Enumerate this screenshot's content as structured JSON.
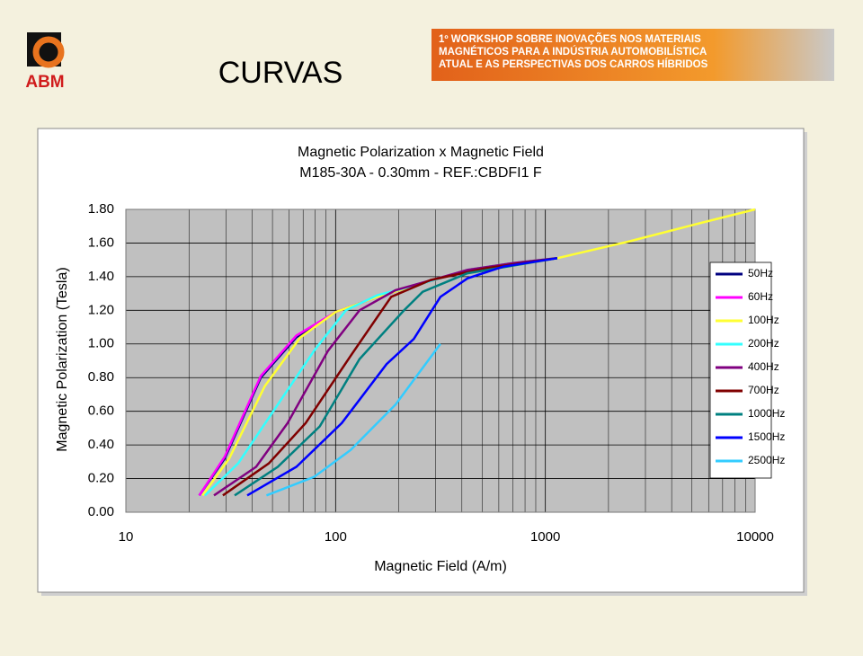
{
  "header": {
    "logo": "ABM",
    "title": "CURVAS",
    "banner": [
      "1º WORKSHOP SOBRE INOVAÇÕES NOS MATERIAIS",
      "MAGNÉTICOS PARA A INDÚSTRIA AUTOMOBILÍSTICA",
      "ATUAL E AS PERSPECTIVAS DOS CARROS HÍBRIDOS"
    ]
  },
  "chart_data": {
    "type": "line",
    "title": [
      "Magnetic Polarization x Magnetic Field",
      "M185-30A - 0.30mm - REF.:CBDFI1 F"
    ],
    "x_label": "Magnetic Field (A/m)",
    "y_label": "Magnetic Polarization (Tesla)",
    "xscale": "log",
    "xlim": [
      10,
      10000
    ],
    "xticks": [
      10,
      100,
      1000,
      10000
    ],
    "ylim": [
      0,
      1.8
    ],
    "yticks": [
      {
        "value": 0,
        "label": "0.00"
      },
      {
        "value": 0.2,
        "label": "0.20"
      },
      {
        "value": 0.4,
        "label": "0.40"
      },
      {
        "value": 0.6,
        "label": "0.60"
      },
      {
        "value": 0.8,
        "label": "0.80"
      },
      {
        "value": 1.0,
        "label": "1.00"
      },
      {
        "value": 1.2,
        "label": "1.20"
      },
      {
        "value": 1.4,
        "label": "1.40"
      },
      {
        "value": 1.6,
        "label": "1.60"
      },
      {
        "value": 1.8,
        "label": "1.80"
      }
    ],
    "grid": true,
    "legend": "right",
    "series": [
      {
        "name": "50Hz",
        "color": "#000080",
        "x": [
          22.4,
          29.6,
          44,
          65,
          100,
          158,
          260,
          425,
          697,
          1140
        ],
        "values": [
          0.1,
          0.32,
          0.8,
          1.04,
          1.19,
          1.28,
          1.36,
          1.44,
          1.48,
          1.51
        ]
      },
      {
        "name": "60Hz",
        "color": "#ff00ff",
        "x": [
          22.4,
          29.6,
          44,
          65,
          100,
          158,
          260,
          425,
          697,
          1140
        ],
        "values": [
          0.1,
          0.33,
          0.81,
          1.05,
          1.19,
          1.28,
          1.36,
          1.44,
          1.48,
          1.51
        ]
      },
      {
        "name": "100Hz",
        "color": "#ffff33",
        "x": [
          23.2,
          31.1,
          46,
          68,
          100,
          158,
          260,
          425,
          697,
          1140,
          2510,
          5530,
          10000
        ],
        "values": [
          0.1,
          0.32,
          0.75,
          1.04,
          1.19,
          1.28,
          1.36,
          1.44,
          1.48,
          1.51,
          1.61,
          1.72,
          1.8
        ]
      },
      {
        "name": "200Hz",
        "color": "#33ffff",
        "x": [
          23.8,
          34.3,
          53,
          79,
          112,
          158,
          260,
          425,
          697,
          1140
        ],
        "values": [
          0.1,
          0.29,
          0.64,
          0.96,
          1.2,
          1.29,
          1.36,
          1.44,
          1.48,
          1.51
        ]
      },
      {
        "name": "400Hz",
        "color": "#800080",
        "x": [
          26.3,
          41.8,
          59,
          92,
          130,
          193,
          425,
          697,
          1140
        ],
        "values": [
          0.1,
          0.27,
          0.53,
          0.96,
          1.2,
          1.32,
          1.44,
          1.48,
          1.51
        ]
      },
      {
        "name": "700Hz",
        "color": "#800000",
        "x": [
          29,
          48,
          72,
          118,
          184,
          284,
          520,
          1140
        ],
        "values": [
          0.1,
          0.29,
          0.53,
          0.93,
          1.28,
          1.38,
          1.45,
          1.51
        ]
      },
      {
        "name": "1000Hz",
        "color": "#008080",
        "x": [
          33,
          53,
          84,
          130,
          212,
          260,
          425,
          1140
        ],
        "values": [
          0.1,
          0.27,
          0.51,
          0.91,
          1.2,
          1.31,
          1.42,
          1.51
        ]
      },
      {
        "name": "1500Hz",
        "color": "#0000ff",
        "x": [
          37.9,
          65,
          107,
          175,
          236,
          316,
          425,
          630,
          1140
        ],
        "values": [
          0.1,
          0.27,
          0.53,
          0.88,
          1.03,
          1.28,
          1.39,
          1.46,
          1.51
        ]
      },
      {
        "name": "2500Hz",
        "color": "#33ccff",
        "x": [
          46.8,
          79,
          118,
          193,
          316
        ],
        "values": [
          0.1,
          0.21,
          0.37,
          0.64,
          1.0
        ]
      }
    ]
  }
}
